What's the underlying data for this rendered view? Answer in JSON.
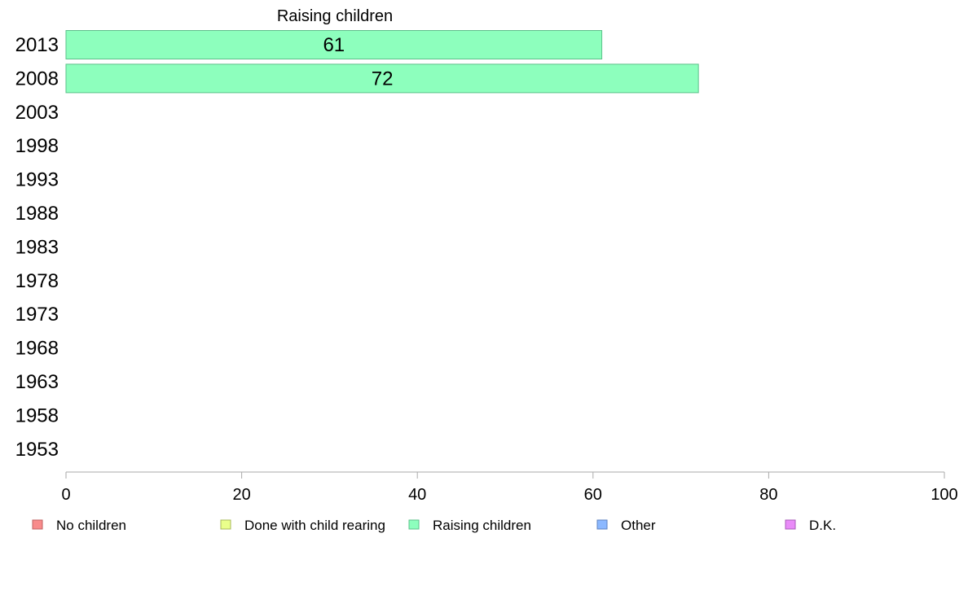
{
  "chart_data": {
    "type": "bar",
    "orientation": "horizontal",
    "title": "Raising children",
    "categories": [
      "2013",
      "2008",
      "2003",
      "1998",
      "1993",
      "1988",
      "1983",
      "1978",
      "1973",
      "1968",
      "1963",
      "1958",
      "1953"
    ],
    "series": [
      {
        "name": "Raising children",
        "values": [
          61,
          72,
          null,
          null,
          null,
          null,
          null,
          null,
          null,
          null,
          null,
          null,
          null
        ],
        "color": "#8dffbd",
        "stroke": "#5cc08a"
      }
    ],
    "data_labels": [
      "61",
      "72",
      "",
      "",
      "",
      "",
      "",
      "",
      "",
      "",
      "",
      "",
      ""
    ],
    "xlim": [
      0,
      100
    ],
    "x_ticks": [
      0,
      20,
      40,
      60,
      80,
      100
    ],
    "x_tick_labels": [
      "0",
      "20",
      "40",
      "60",
      "80",
      "100"
    ],
    "xlabel": "",
    "ylabel": "",
    "grid": false,
    "legend_position": "bottom",
    "legend": [
      {
        "label": "No children",
        "color": "#f88b8b",
        "stroke": "#c06060"
      },
      {
        "label": "Done with child rearing",
        "color": "#eaff8b",
        "stroke": "#a8b85c"
      },
      {
        "label": "Raising children",
        "color": "#8dffbd",
        "stroke": "#5cc08a"
      },
      {
        "label": "Other",
        "color": "#8bb8ff",
        "stroke": "#5c82c0"
      },
      {
        "label": "D.K.",
        "color": "#e98bf8",
        "stroke": "#a85cb8"
      }
    ],
    "axis_color": "#aaaaaa"
  }
}
